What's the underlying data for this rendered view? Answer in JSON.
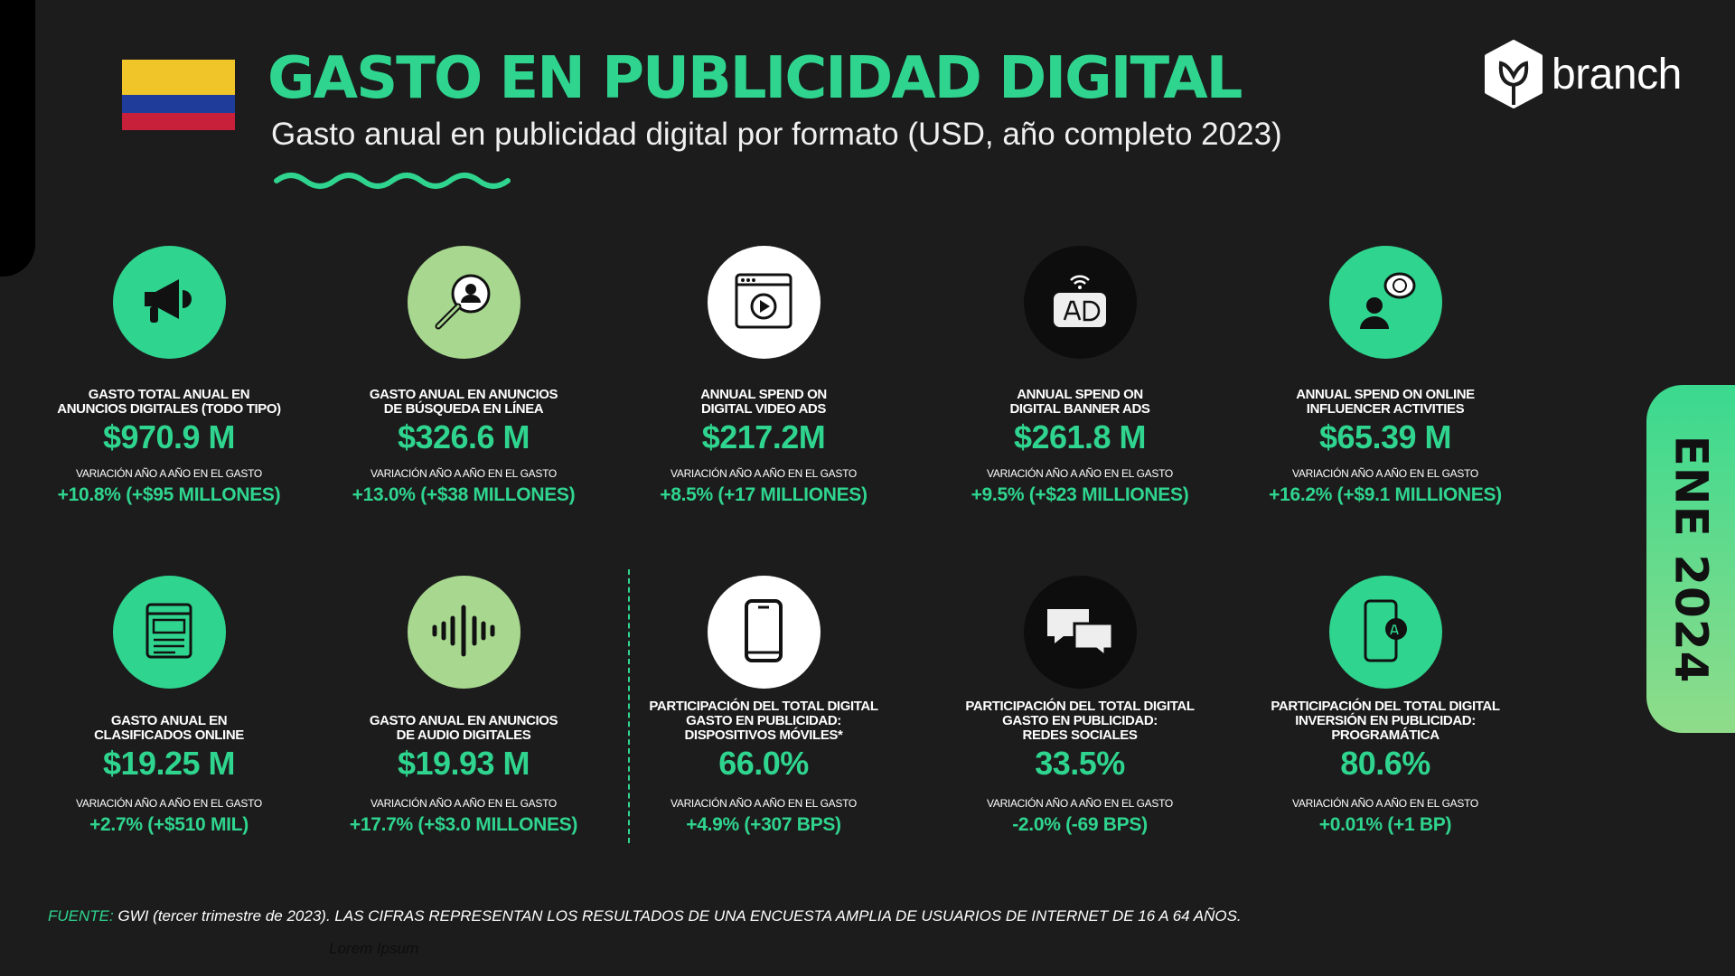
{
  "header": {
    "title": "GASTO EN PUBLICIDAD DIGITAL",
    "subtitle": "Gasto anual en publicidad digital por formato (USD, año completo 2023)"
  },
  "flag": {
    "country": "Colombia",
    "colors": [
      "#f0c52a",
      "#1f3c9a",
      "#c8203a"
    ]
  },
  "logo": {
    "text": "branch"
  },
  "tab": {
    "text": "ENE 2024"
  },
  "colors": {
    "accent": "#2fd58f",
    "background": "#1c1c1c",
    "light_green": "#a8d88f"
  },
  "cards": [
    {
      "icon": "megaphone-icon",
      "title1": "GASTO TOTAL ANUAL EN",
      "title2": "ANUNCIOS DIGITALES (TODO TIPO)",
      "title3": "",
      "value": "$970.9 M",
      "label": "VARIACIÓN AÑO A AÑO EN EL GASTO",
      "change": "+10.8% (+$95 MILLONES)"
    },
    {
      "icon": "search-person-icon",
      "title1": "GASTO ANUAL EN ANUNCIOS",
      "title2": "DE BÚSQUEDA EN LÍNEA",
      "title3": "",
      "value": "$326.6 M",
      "label": "VARIACIÓN AÑO A AÑO EN EL GASTO",
      "change": "+13.0% (+$38 MILLONES)"
    },
    {
      "icon": "video-player-icon",
      "title1": "ANNUAL SPEND ON",
      "title2": "DIGITAL VIDEO ADS",
      "title3": "",
      "value": "$217.2M",
      "label": "VARIACIÓN AÑO A AÑO EN EL GASTO",
      "change": "+8.5% (+17 MILLIONES)"
    },
    {
      "icon": "banner-ad-icon",
      "title1": "ANNUAL SPEND ON",
      "title2": "DIGITAL BANNER ADS",
      "title3": "",
      "value": "$261.8 M",
      "label": "VARIACIÓN AÑO A AÑO EN EL GASTO",
      "change": "+9.5% (+$23 MILLIONES)"
    },
    {
      "icon": "influencer-icon",
      "title1": "ANNUAL SPEND ON ONLINE",
      "title2": "INFLUENCER ACTIVITIES",
      "title3": "",
      "value": "$65.39 M",
      "label": "VARIACIÓN AÑO A AÑO EN EL GASTO",
      "change": "+16.2% (+$9.1 MILLIONES)"
    },
    {
      "icon": "classifieds-icon",
      "title1": "GASTO ANUAL EN",
      "title2": "CLASIFICADOS ONLINE",
      "title3": "",
      "value": "$19.25 M",
      "label": "VARIACIÓN AÑO A AÑO EN EL GASTO",
      "change": "+2.7% (+$510 MIL)"
    },
    {
      "icon": "audio-wave-icon",
      "title1": "GASTO ANUAL EN ANUNCIOS",
      "title2": "DE AUDIO DIGITALES",
      "title3": "",
      "value": "$19.93 M",
      "label": "VARIACIÓN AÑO A AÑO EN EL GASTO",
      "change": "+17.7% (+$3.0 MILLONES)"
    },
    {
      "icon": "smartphone-icon",
      "title1": "PARTICIPACIÓN DEL TOTAL DIGITAL",
      "title2": "GASTO EN PUBLICIDAD:",
      "title3": "DISPOSITIVOS MÓVILES*",
      "value": "66.0%",
      "label": "VARIACIÓN AÑO A AÑO EN EL GASTO",
      "change": "+4.9% (+307 BPS)"
    },
    {
      "icon": "chat-bubbles-icon",
      "title1": "PARTICIPACIÓN DEL TOTAL DIGITAL",
      "title2": "GASTO EN PUBLICIDAD:",
      "title3": "REDES SOCIALES",
      "value": "33.5%",
      "label": "VARIACIÓN AÑO A AÑO EN EL GASTO",
      "change": "-2.0% (-69 BPS)"
    },
    {
      "icon": "mobile-ad-icon",
      "title1": "PARTICIPACIÓN DEL TOTAL DIGITAL",
      "title2": "INVERSIÓN EN PUBLICIDAD:",
      "title3": "PROGRAMÁTICA",
      "value": "80.6%",
      "label": "VARIACIÓN AÑO A AÑO EN EL GASTO",
      "change": "+0.01% (+1 BP)"
    }
  ],
  "footer": {
    "source_label": "FUENTE:",
    "text": " GWI (tercer trimestre de 2023). LAS CIFRAS REPRESENTAN LOS RESULTADOS DE UNA ENCUESTA AMPLIA DE USUARIOS DE INTERNET DE 16 A 64 AÑOS.",
    "placeholder": "Lorem Ipsum"
  }
}
